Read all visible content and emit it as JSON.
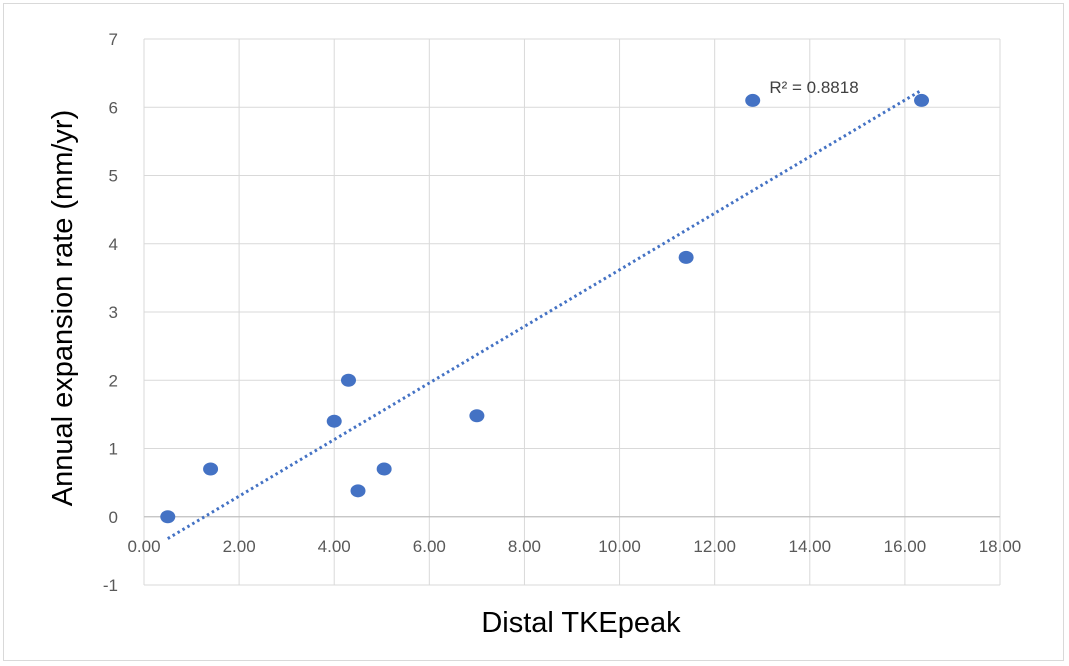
{
  "chart_data": {
    "type": "scatter",
    "xlabel": "Distal TKEpeak",
    "ylabel": "Annual expansion rate (mm/yr)",
    "xlim": [
      0,
      18
    ],
    "ylim": [
      -1,
      7
    ],
    "x_ticks": [
      "0.00",
      "2.00",
      "4.00",
      "6.00",
      "8.00",
      "10.00",
      "12.00",
      "14.00",
      "16.00",
      "18.00"
    ],
    "y_ticks": [
      "-1",
      "0",
      "1",
      "2",
      "3",
      "4",
      "5",
      "6",
      "7"
    ],
    "grid": true,
    "series": [
      {
        "points": [
          {
            "x": 0.5,
            "y": 0.0
          },
          {
            "x": 1.4,
            "y": 0.7
          },
          {
            "x": 4.0,
            "y": 1.4
          },
          {
            "x": 4.3,
            "y": 2.0
          },
          {
            "x": 4.5,
            "y": 0.38
          },
          {
            "x": 5.05,
            "y": 0.7
          },
          {
            "x": 7.0,
            "y": 1.48
          },
          {
            "x": 11.4,
            "y": 3.8
          },
          {
            "x": 12.8,
            "y": 6.1
          },
          {
            "x": 16.35,
            "y": 6.1
          }
        ],
        "color": "#4472c4"
      }
    ],
    "trendline": {
      "type": "linear",
      "from": {
        "x": 0.5,
        "y": -0.32
      },
      "to": {
        "x": 16.35,
        "y": 6.25
      },
      "color": "#4472c4",
      "style": "dotted"
    },
    "annotation": {
      "text": "R² = 0.8818",
      "anchor": {
        "x": 13.15,
        "y": 6.25
      }
    }
  }
}
